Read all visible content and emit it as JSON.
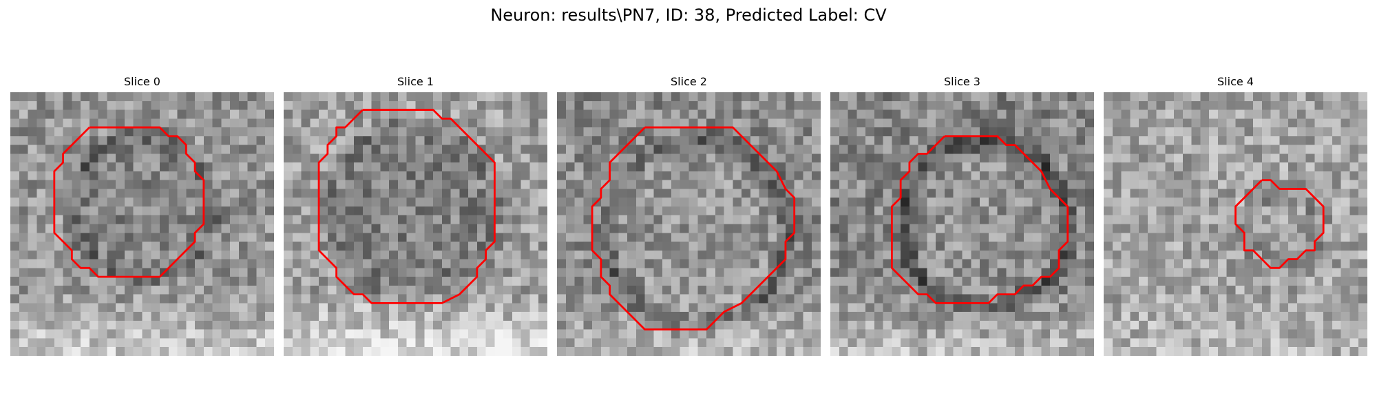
{
  "figure": {
    "title": "Neuron: results\\PN7, ID: 38, Predicted Label: CV",
    "contour_color": "#ff0000"
  },
  "slices": [
    {
      "label": "Slice 0"
    },
    {
      "label": "Slice 1"
    },
    {
      "label": "Slice 2"
    },
    {
      "label": "Slice 3"
    },
    {
      "label": "Slice 4"
    }
  ]
}
